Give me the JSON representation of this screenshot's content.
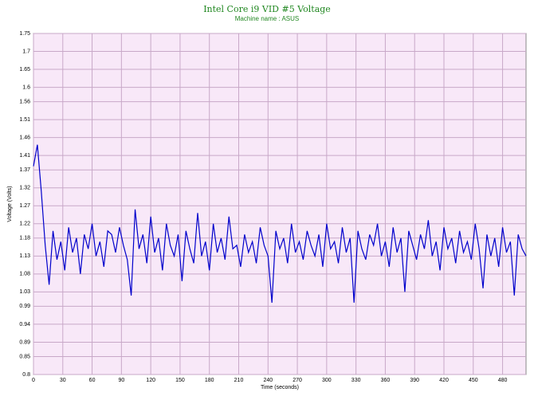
{
  "chart_data": {
    "type": "line",
    "title": "Intel Core i9 VID #5 Voltage",
    "subtitle": "Machine name : ASUS",
    "xlabel": "Time (seconds)",
    "ylabel": "Voltage (Volts)",
    "xlim": [
      0,
      504
    ],
    "ylim": [
      0.8,
      1.75
    ],
    "xticks": [
      0,
      30,
      60,
      90,
      120,
      150,
      180,
      210,
      240,
      270,
      300,
      330,
      360,
      390,
      420,
      450,
      480
    ],
    "yticks": [
      0.8,
      0.85,
      0.89,
      0.94,
      0.99,
      1.03,
      1.08,
      1.13,
      1.18,
      1.22,
      1.27,
      1.32,
      1.37,
      1.41,
      1.46,
      1.51,
      1.56,
      1.6,
      1.65,
      1.7,
      1.75
    ],
    "grid": true,
    "x": [
      0,
      4,
      8,
      12,
      16,
      20,
      24,
      28,
      32,
      36,
      40,
      44,
      48,
      52,
      56,
      60,
      64,
      68,
      72,
      76,
      80,
      84,
      88,
      92,
      96,
      100,
      104,
      108,
      112,
      116,
      120,
      124,
      128,
      132,
      136,
      140,
      144,
      148,
      152,
      156,
      160,
      164,
      168,
      172,
      176,
      180,
      184,
      188,
      192,
      196,
      200,
      204,
      208,
      212,
      216,
      220,
      224,
      228,
      232,
      236,
      240,
      244,
      248,
      252,
      256,
      260,
      264,
      268,
      272,
      276,
      280,
      284,
      288,
      292,
      296,
      300,
      304,
      308,
      312,
      316,
      320,
      324,
      328,
      332,
      336,
      340,
      344,
      348,
      352,
      356,
      360,
      364,
      368,
      372,
      376,
      380,
      384,
      388,
      392,
      396,
      400,
      404,
      408,
      412,
      416,
      420,
      424,
      428,
      432,
      436,
      440,
      444,
      448,
      452,
      456,
      460,
      464,
      468,
      472,
      476,
      480,
      484,
      488,
      492,
      496,
      500,
      504
    ],
    "series": [
      {
        "name": "VID #5",
        "color": "#0000cc",
        "values": [
          1.38,
          1.44,
          1.31,
          1.16,
          1.05,
          1.2,
          1.12,
          1.17,
          1.09,
          1.21,
          1.14,
          1.18,
          1.08,
          1.19,
          1.15,
          1.22,
          1.13,
          1.17,
          1.1,
          1.2,
          1.19,
          1.14,
          1.21,
          1.16,
          1.12,
          1.02,
          1.26,
          1.15,
          1.19,
          1.11,
          1.24,
          1.14,
          1.18,
          1.09,
          1.22,
          1.16,
          1.13,
          1.19,
          1.06,
          1.2,
          1.15,
          1.11,
          1.25,
          1.13,
          1.17,
          1.09,
          1.22,
          1.14,
          1.18,
          1.12,
          1.24,
          1.15,
          1.16,
          1.1,
          1.19,
          1.14,
          1.17,
          1.11,
          1.21,
          1.16,
          1.13,
          1.0,
          1.2,
          1.15,
          1.18,
          1.11,
          1.22,
          1.14,
          1.17,
          1.12,
          1.2,
          1.16,
          1.13,
          1.19,
          1.1,
          1.22,
          1.15,
          1.17,
          1.11,
          1.21,
          1.14,
          1.18,
          1.0,
          1.2,
          1.15,
          1.12,
          1.19,
          1.16,
          1.22,
          1.13,
          1.17,
          1.1,
          1.21,
          1.14,
          1.18,
          1.03,
          1.2,
          1.16,
          1.12,
          1.19,
          1.15,
          1.23,
          1.13,
          1.17,
          1.09,
          1.21,
          1.15,
          1.18,
          1.11,
          1.2,
          1.14,
          1.17,
          1.12,
          1.22,
          1.15,
          1.04,
          1.19,
          1.13,
          1.18,
          1.1,
          1.21,
          1.14,
          1.17,
          1.02,
          1.19,
          1.15,
          1.13
        ]
      }
    ]
  }
}
